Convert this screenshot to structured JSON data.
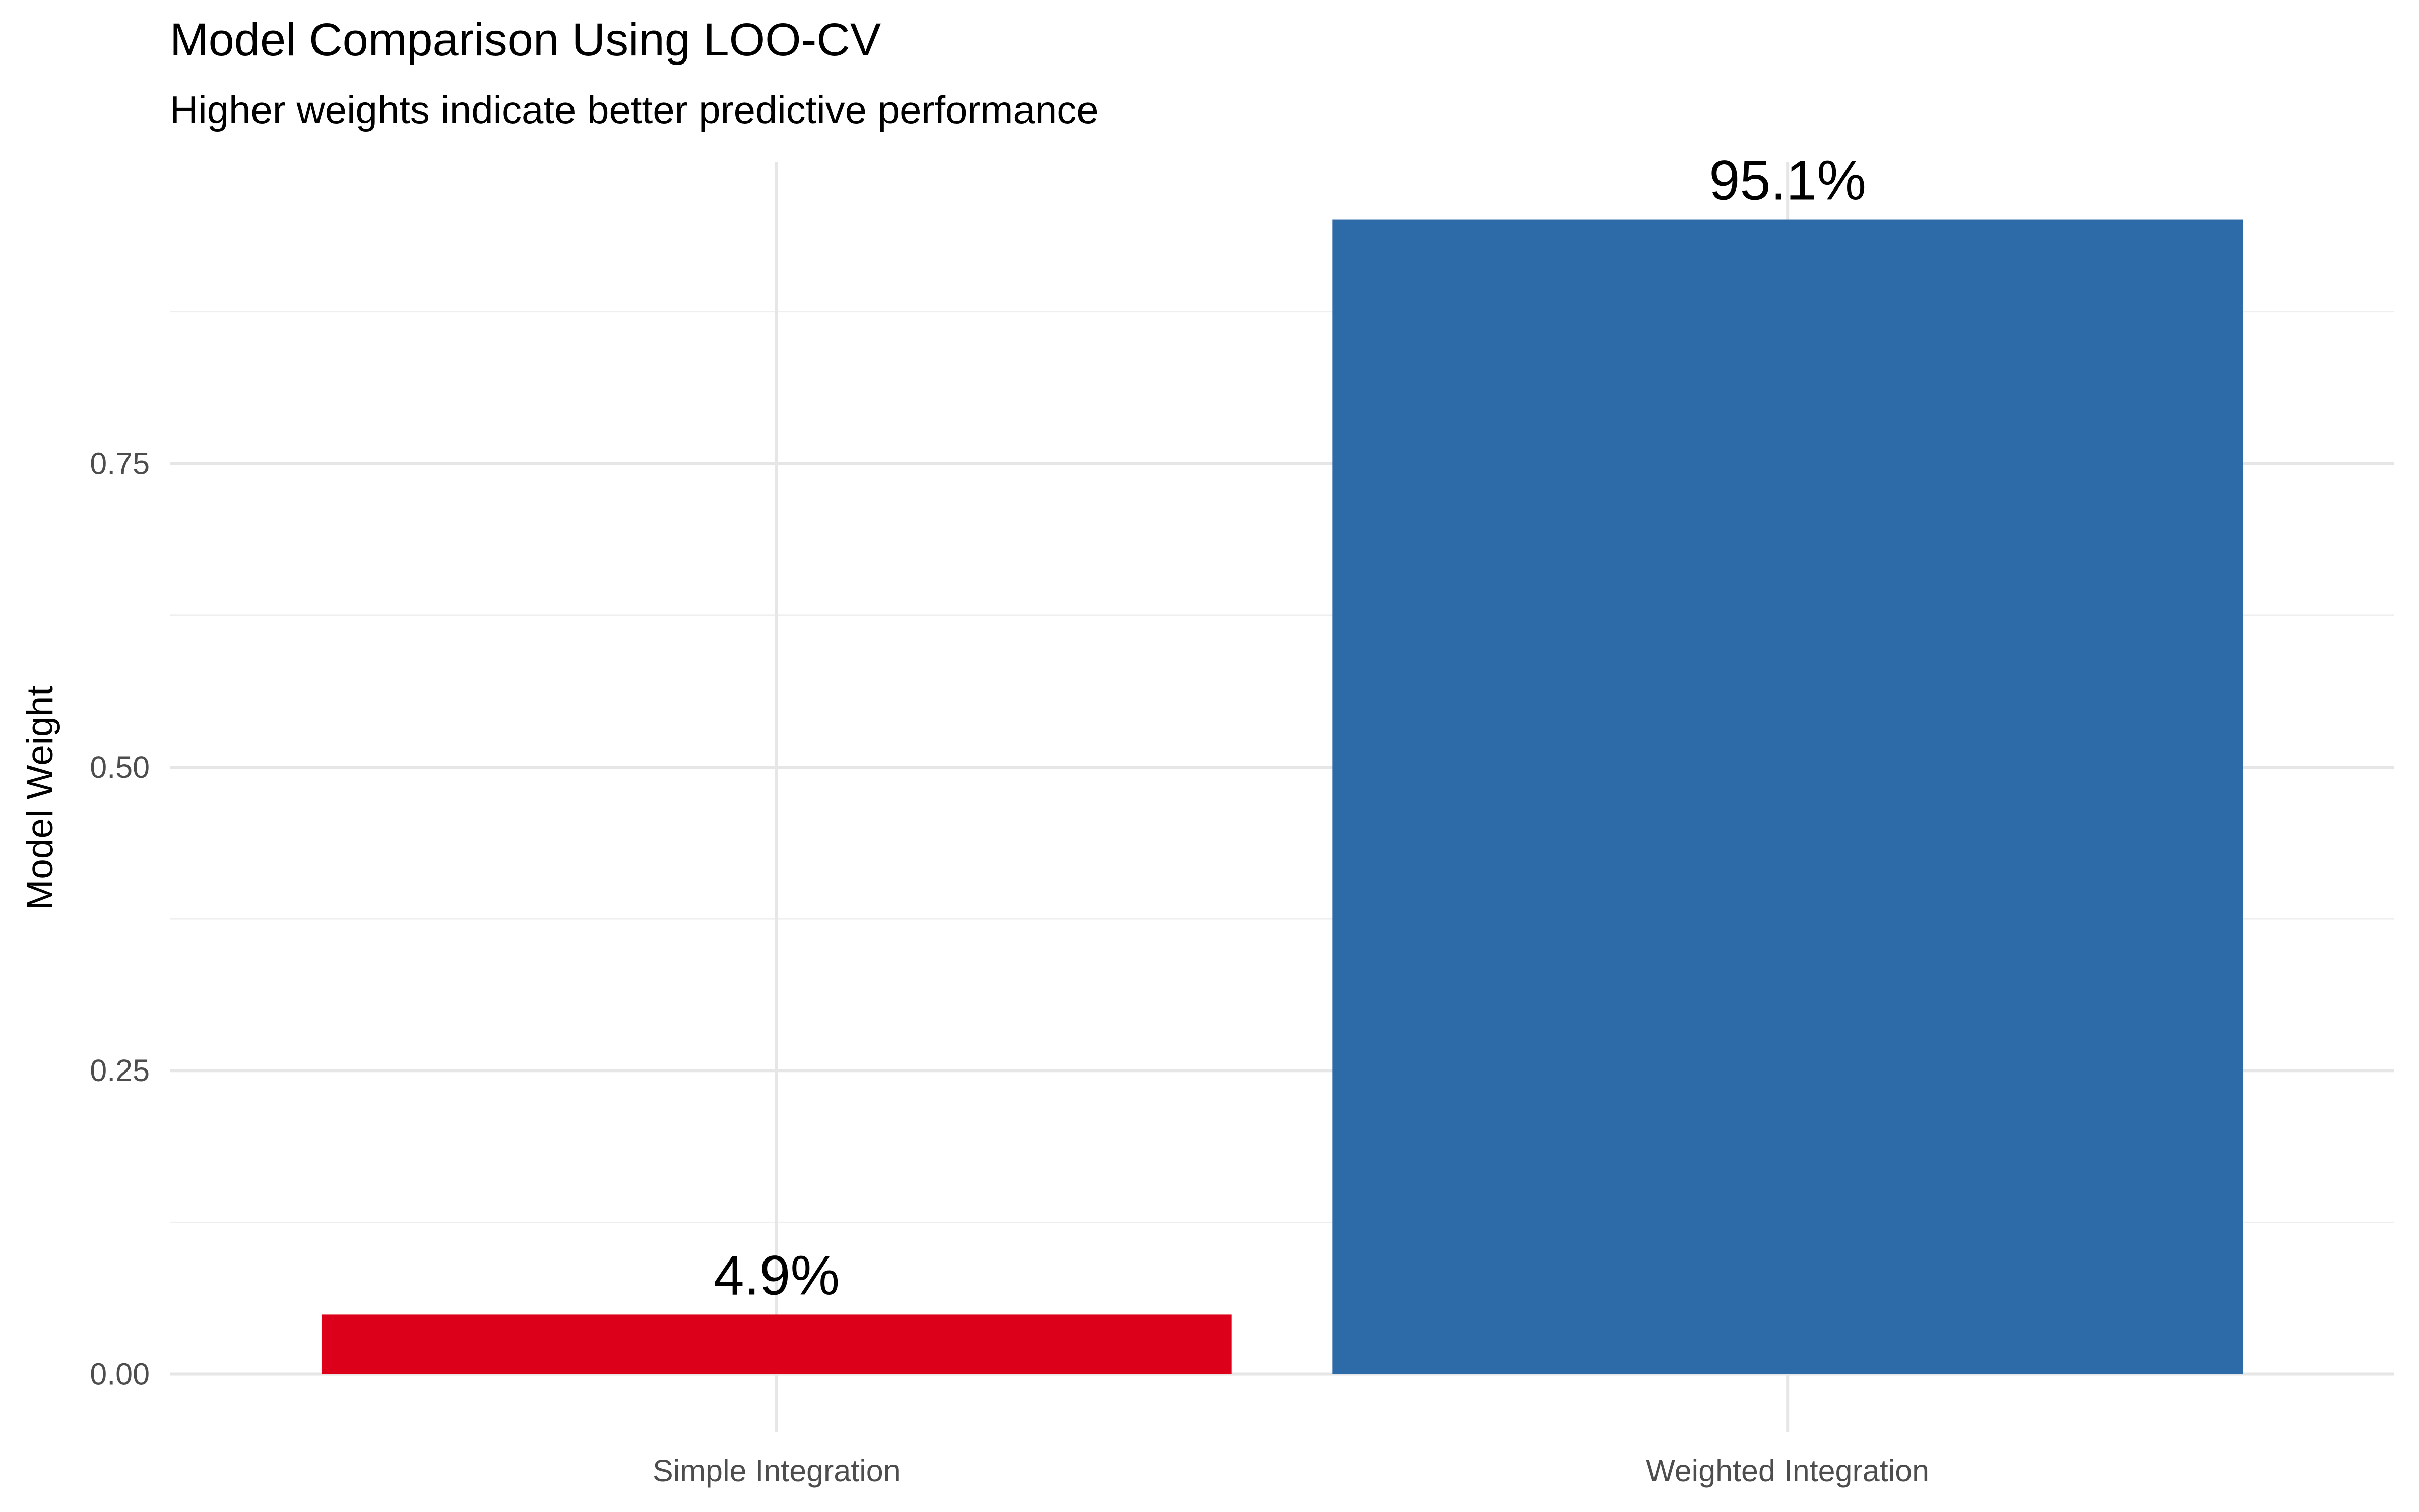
{
  "chart_data": {
    "type": "bar",
    "title": "Model Comparison Using LOO-CV",
    "subtitle": "Higher weights indicate better predictive performance",
    "y_label": "Model Weight",
    "categories": [
      "Simple Integration",
      "Weighted Integration"
    ],
    "values": [
      0.049,
      0.951
    ],
    "value_labels": [
      "4.9%",
      "95.1%"
    ],
    "colors": [
      "#dc001a",
      "#2d6aa8"
    ],
    "ylim": [
      -0.04755,
      0.99855
    ],
    "yticks": [
      {
        "value": 0,
        "label": "0.00"
      },
      0.25,
      {
        "value": 0.5,
        "label": "0.50"
      },
      0.75
    ],
    "yminor": [
      0.125,
      0.375,
      0.625,
      0.875
    ],
    "grid": true
  }
}
